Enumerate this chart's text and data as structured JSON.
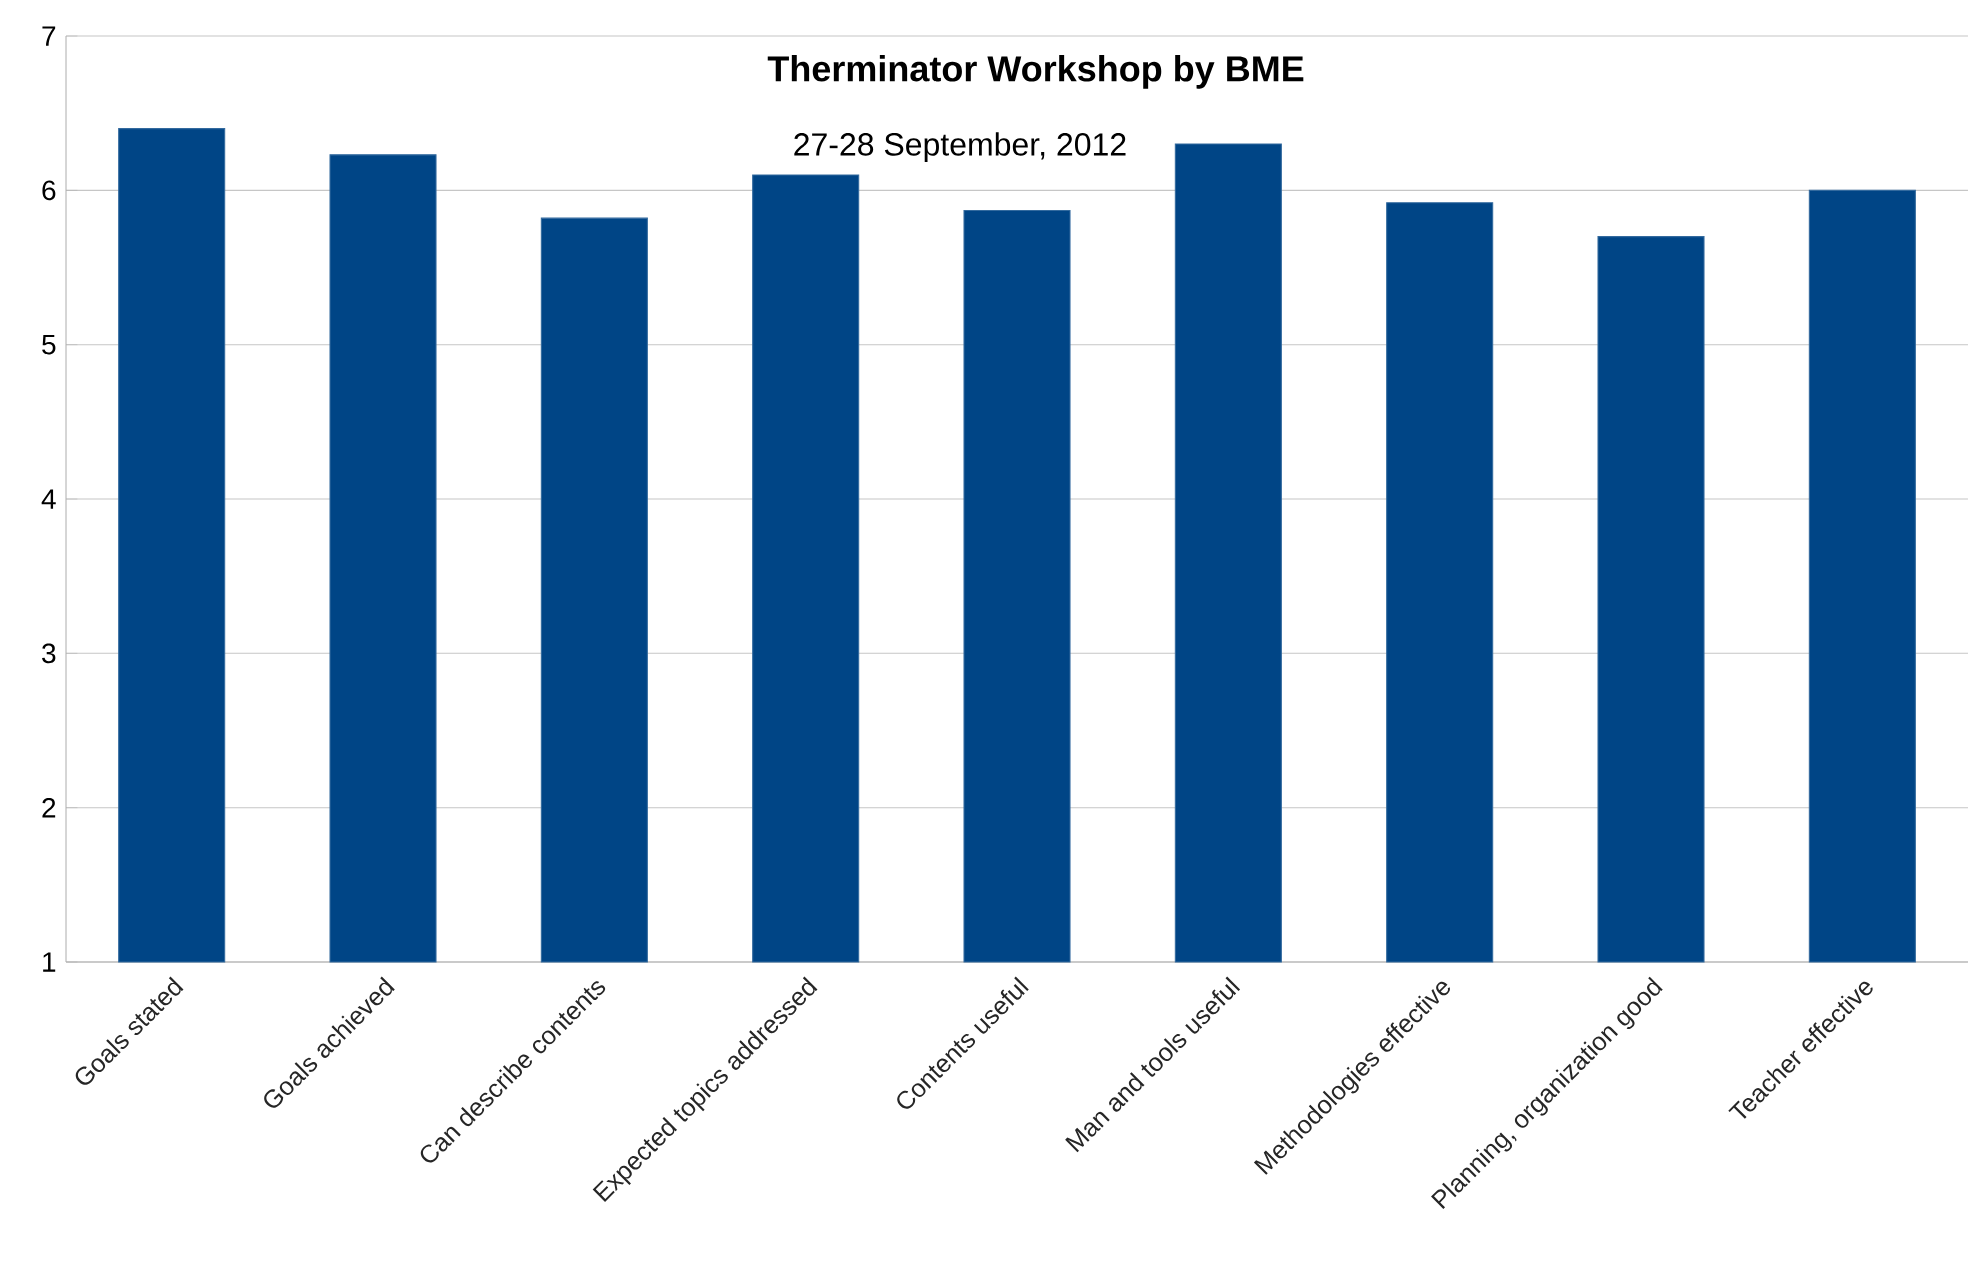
{
  "chart_data": {
    "type": "bar",
    "title": "Therminator Workshop by BME",
    "subtitle": "27-28 September, 2012",
    "categories": [
      "Goals stated",
      "Goals achieved",
      "Can describe contents",
      "Expected topics addressed",
      "Contents useful",
      "Man and tools useful",
      "Methodologies effective",
      "Planning, organization good",
      "Teacher effective"
    ],
    "values": [
      6.4,
      6.23,
      5.82,
      6.1,
      5.87,
      6.3,
      5.92,
      5.7,
      6.0
    ],
    "color": "#004586",
    "ylim": [
      1,
      7
    ],
    "yticks": [
      1,
      2,
      3,
      4,
      5,
      6,
      7
    ],
    "grid": "y"
  }
}
